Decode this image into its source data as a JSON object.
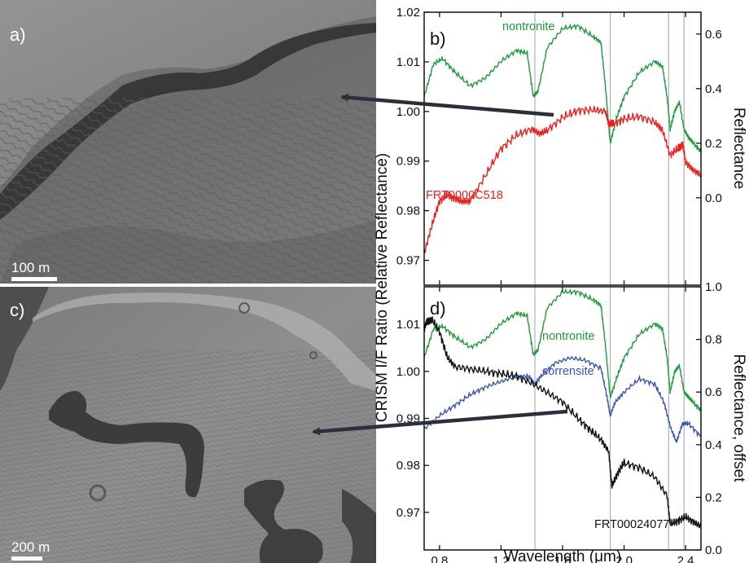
{
  "panels": {
    "a": {
      "letter": "a)",
      "scale_label": "100 m"
    },
    "c": {
      "letter": "c)",
      "scale_label": "200 m"
    }
  },
  "colors": {
    "nontronite": "#1f9a3a",
    "frt_c518": "#e8201f",
    "corrensite": "#3a56b0",
    "frt_24077": "#111111",
    "marker_lines": "#b0b0b0"
  },
  "shared_ylabel": "CRISM I/F Ratio (Relative Reflectance)",
  "chart_data": [
    {
      "id": "b",
      "type": "line",
      "panel_letter": "b)",
      "title": "",
      "xlabel": "Wavelength (μm)",
      "xlim": [
        0.7,
        2.5
      ],
      "x_ticks": [
        0.8,
        1.2,
        1.6,
        2.0,
        2.4
      ],
      "x_tick_labels": [
        "",
        "",
        "",
        "",
        ""
      ],
      "left_axis": {
        "lim": [
          0.965,
          1.02
        ],
        "ticks": [
          0.97,
          0.98,
          0.99,
          1.0,
          1.01,
          1.02
        ],
        "tick_labels": [
          "0.97",
          "0.98",
          "0.99",
          "1.00",
          "1.01",
          "1.02"
        ]
      },
      "right_axis": {
        "label": "Reflectance",
        "ticks": [
          0.0,
          0.2,
          0.4,
          0.6
        ],
        "tick_labels": [
          "0.0",
          "0.2",
          "0.4",
          "0.6"
        ]
      },
      "vertical_markers": [
        1.42,
        1.91,
        2.29,
        2.39
      ],
      "series": [
        {
          "name": "nontronite",
          "axis": "right",
          "x": [
            0.7,
            0.76,
            0.82,
            0.9,
            1.0,
            1.1,
            1.2,
            1.3,
            1.37,
            1.41,
            1.44,
            1.5,
            1.6,
            1.7,
            1.8,
            1.85,
            1.88,
            1.91,
            1.95,
            2.0,
            2.1,
            2.2,
            2.25,
            2.28,
            2.3,
            2.33,
            2.36,
            2.39,
            2.42,
            2.45,
            2.5
          ],
          "y": [
            0.37,
            0.49,
            0.51,
            0.46,
            0.41,
            0.44,
            0.5,
            0.54,
            0.53,
            0.37,
            0.39,
            0.55,
            0.62,
            0.63,
            0.59,
            0.57,
            0.4,
            0.2,
            0.29,
            0.37,
            0.46,
            0.5,
            0.48,
            0.37,
            0.25,
            0.32,
            0.35,
            0.25,
            0.22,
            0.2,
            0.17
          ]
        },
        {
          "name": "FRT0000C518",
          "axis": "left",
          "x": [
            0.7,
            0.75,
            0.8,
            0.85,
            0.9,
            0.95,
            1.0,
            1.1,
            1.2,
            1.3,
            1.4,
            1.45,
            1.5,
            1.6,
            1.7,
            1.8,
            1.88,
            1.9,
            1.93,
            2.0,
            2.1,
            2.2,
            2.25,
            2.3,
            2.35,
            2.38,
            2.4,
            2.45,
            2.5
          ],
          "y": [
            0.9713,
            0.977,
            0.982,
            0.9832,
            0.9825,
            0.9818,
            0.982,
            0.9872,
            0.9925,
            0.9952,
            0.9965,
            0.9955,
            0.9962,
            0.9988,
            1.0002,
            1.0003,
            1.0,
            0.9975,
            0.9975,
            0.9985,
            0.999,
            0.9978,
            0.9962,
            0.9912,
            0.9925,
            0.9935,
            0.9898,
            0.9882,
            0.9872
          ]
        }
      ],
      "annotations": [
        "nontronite",
        "FRT0000C518"
      ]
    },
    {
      "id": "d",
      "type": "line",
      "panel_letter": "d)",
      "title": "",
      "xlabel": "Wavelength (μm)",
      "xlim": [
        0.7,
        2.5
      ],
      "x_ticks": [
        0.8,
        1.2,
        1.6,
        2.0,
        2.4
      ],
      "x_tick_labels": [
        "0.8",
        "1.2",
        "1.6",
        "2.0",
        "2.4"
      ],
      "left_axis": {
        "lim": [
          0.962,
          1.018
        ],
        "ticks": [
          0.97,
          0.98,
          0.99,
          1.0,
          1.01
        ],
        "tick_labels": [
          "0.97",
          "0.98",
          "0.99",
          "1.00",
          "1.01"
        ]
      },
      "right_axis": {
        "label": "Reflectance, offset",
        "lim": [
          0.0,
          1.0
        ],
        "ticks": [
          0.0,
          0.2,
          0.4,
          0.6,
          0.8,
          1.0
        ],
        "tick_labels": [
          "0.0",
          "0.2",
          "0.4",
          "0.6",
          "0.8",
          "1.0"
        ]
      },
      "vertical_markers": [
        1.42,
        1.91,
        2.29,
        2.39
      ],
      "series": [
        {
          "name": "nontronite",
          "axis": "right",
          "x": [
            0.7,
            0.76,
            0.82,
            0.9,
            1.0,
            1.1,
            1.2,
            1.3,
            1.37,
            1.41,
            1.44,
            1.5,
            1.6,
            1.7,
            1.8,
            1.85,
            1.88,
            1.91,
            1.95,
            2.0,
            2.1,
            2.2,
            2.25,
            2.28,
            2.3,
            2.33,
            2.36,
            2.39,
            2.42,
            2.45,
            2.5
          ],
          "y": [
            0.73,
            0.84,
            0.85,
            0.81,
            0.77,
            0.8,
            0.86,
            0.9,
            0.89,
            0.74,
            0.76,
            0.92,
            0.98,
            0.98,
            0.95,
            0.93,
            0.77,
            0.58,
            0.65,
            0.73,
            0.82,
            0.86,
            0.84,
            0.73,
            0.6,
            0.68,
            0.7,
            0.6,
            0.58,
            0.56,
            0.53
          ]
        },
        {
          "name": "corrensite",
          "axis": "right",
          "x": [
            0.7,
            0.8,
            0.9,
            1.0,
            1.1,
            1.2,
            1.3,
            1.38,
            1.42,
            1.46,
            1.55,
            1.65,
            1.75,
            1.85,
            1.89,
            1.91,
            1.94,
            2.0,
            2.1,
            2.2,
            2.26,
            2.3,
            2.34,
            2.38,
            2.42,
            2.5
          ],
          "y": [
            0.46,
            0.51,
            0.55,
            0.59,
            0.62,
            0.64,
            0.66,
            0.66,
            0.63,
            0.66,
            0.71,
            0.73,
            0.72,
            0.69,
            0.58,
            0.51,
            0.56,
            0.6,
            0.65,
            0.63,
            0.56,
            0.47,
            0.41,
            0.48,
            0.48,
            0.43
          ]
        },
        {
          "name": "FRT00024077",
          "axis": "left",
          "x": [
            0.7,
            0.72,
            0.75,
            0.8,
            0.85,
            0.9,
            1.0,
            1.1,
            1.2,
            1.3,
            1.4,
            1.5,
            1.6,
            1.7,
            1.78,
            1.85,
            1.9,
            1.92,
            1.96,
            2.0,
            2.1,
            2.2,
            2.28,
            2.3,
            2.35,
            2.4,
            2.45,
            2.5
          ],
          "y": [
            1.009,
            1.0108,
            1.011,
            1.0085,
            1.003,
            1.001,
            1.0005,
            1.0,
            0.9995,
            0.999,
            0.9975,
            0.9955,
            0.9935,
            0.99,
            0.9875,
            0.9855,
            0.983,
            0.9755,
            0.9785,
            0.9805,
            0.9795,
            0.9775,
            0.9735,
            0.9675,
            0.9682,
            0.969,
            0.968,
            0.967
          ]
        }
      ],
      "annotations": [
        "nontronite",
        "corrensite",
        "FRT00024077"
      ]
    }
  ]
}
